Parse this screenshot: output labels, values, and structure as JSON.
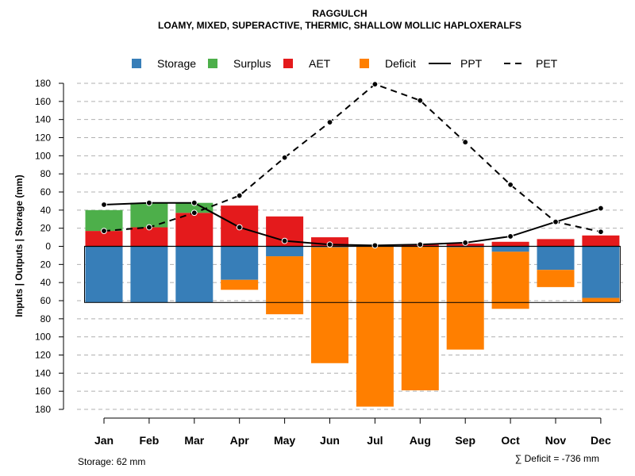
{
  "chart_data": {
    "type": "bar",
    "title": "RAGGULCH",
    "subtitle": "LOAMY, MIXED, SUPERACTIVE, THERMIC, SHALLOW MOLLIC HAPLOXERALFS",
    "ylabel": "Inputs | Outputs | Storage    (mm)",
    "xlabel": "",
    "categories": [
      "Jan",
      "Feb",
      "Mar",
      "Apr",
      "May",
      "Jun",
      "Jul",
      "Aug",
      "Sep",
      "Oct",
      "Nov",
      "Dec"
    ],
    "ylim": [
      -180,
      180
    ],
    "y_ticks": [
      180,
      160,
      140,
      120,
      100,
      80,
      60,
      40,
      20,
      0,
      -20,
      -40,
      -60,
      -80,
      -100,
      -120,
      -140,
      -160,
      -180
    ],
    "y_tick_labels": [
      "180",
      "160",
      "140",
      "120",
      "100",
      "80",
      "60",
      "40",
      "20",
      "0",
      "20",
      "40",
      "60",
      "80",
      "100",
      "120",
      "140",
      "160",
      "180"
    ],
    "grid": true,
    "legend_position": "top",
    "legend": [
      {
        "label": "Storage",
        "kind": "box",
        "color": "#377EB8"
      },
      {
        "label": "Surplus",
        "kind": "box",
        "color": "#4DAF4A"
      },
      {
        "label": "AET",
        "kind": "box",
        "color": "#E41A1C"
      },
      {
        "label": "Deficit",
        "kind": "box",
        "color": "#FF7F00"
      },
      {
        "label": "PPT",
        "kind": "solid"
      },
      {
        "label": "PET",
        "kind": "dashed"
      }
    ],
    "series": [
      {
        "name": "AET",
        "color": "#E41A1C",
        "values": [
          17,
          21,
          37,
          45,
          33,
          10,
          1,
          2,
          3,
          5,
          8,
          12
        ]
      },
      {
        "name": "Surplus",
        "color": "#4DAF4A",
        "values": [
          23,
          27,
          11,
          0,
          0,
          0,
          0,
          0,
          0,
          0,
          0,
          0
        ]
      },
      {
        "name": "Storage",
        "color": "#377EB8",
        "values": [
          62,
          62,
          62,
          37,
          11,
          1,
          0,
          0,
          1,
          6,
          26,
          57
        ]
      },
      {
        "name": "Deficit",
        "color": "#FF7F00",
        "values": [
          0,
          0,
          0,
          11,
          64,
          128,
          177,
          159,
          113,
          63,
          19,
          5
        ]
      },
      {
        "name": "PPT",
        "color": "#000000",
        "line": "solid",
        "values": [
          46,
          48,
          48,
          21,
          6,
          2,
          1,
          2,
          4,
          11,
          27,
          42
        ]
      },
      {
        "name": "PET",
        "color": "#000000",
        "line": "dashed",
        "values": [
          17,
          21,
          37,
          56,
          98,
          137,
          179,
          161,
          115,
          68,
          27,
          16
        ]
      }
    ],
    "storage_capacity": 62,
    "storage_note": "Storage: 62 mm",
    "deficit_note": "∑ Deficit = -736 mm"
  },
  "colors": {
    "storage": "#377EB8",
    "surplus": "#4DAF4A",
    "aet": "#E41A1C",
    "deficit": "#FF7F00",
    "grid": "#B0B0B0",
    "line": "#000000"
  }
}
